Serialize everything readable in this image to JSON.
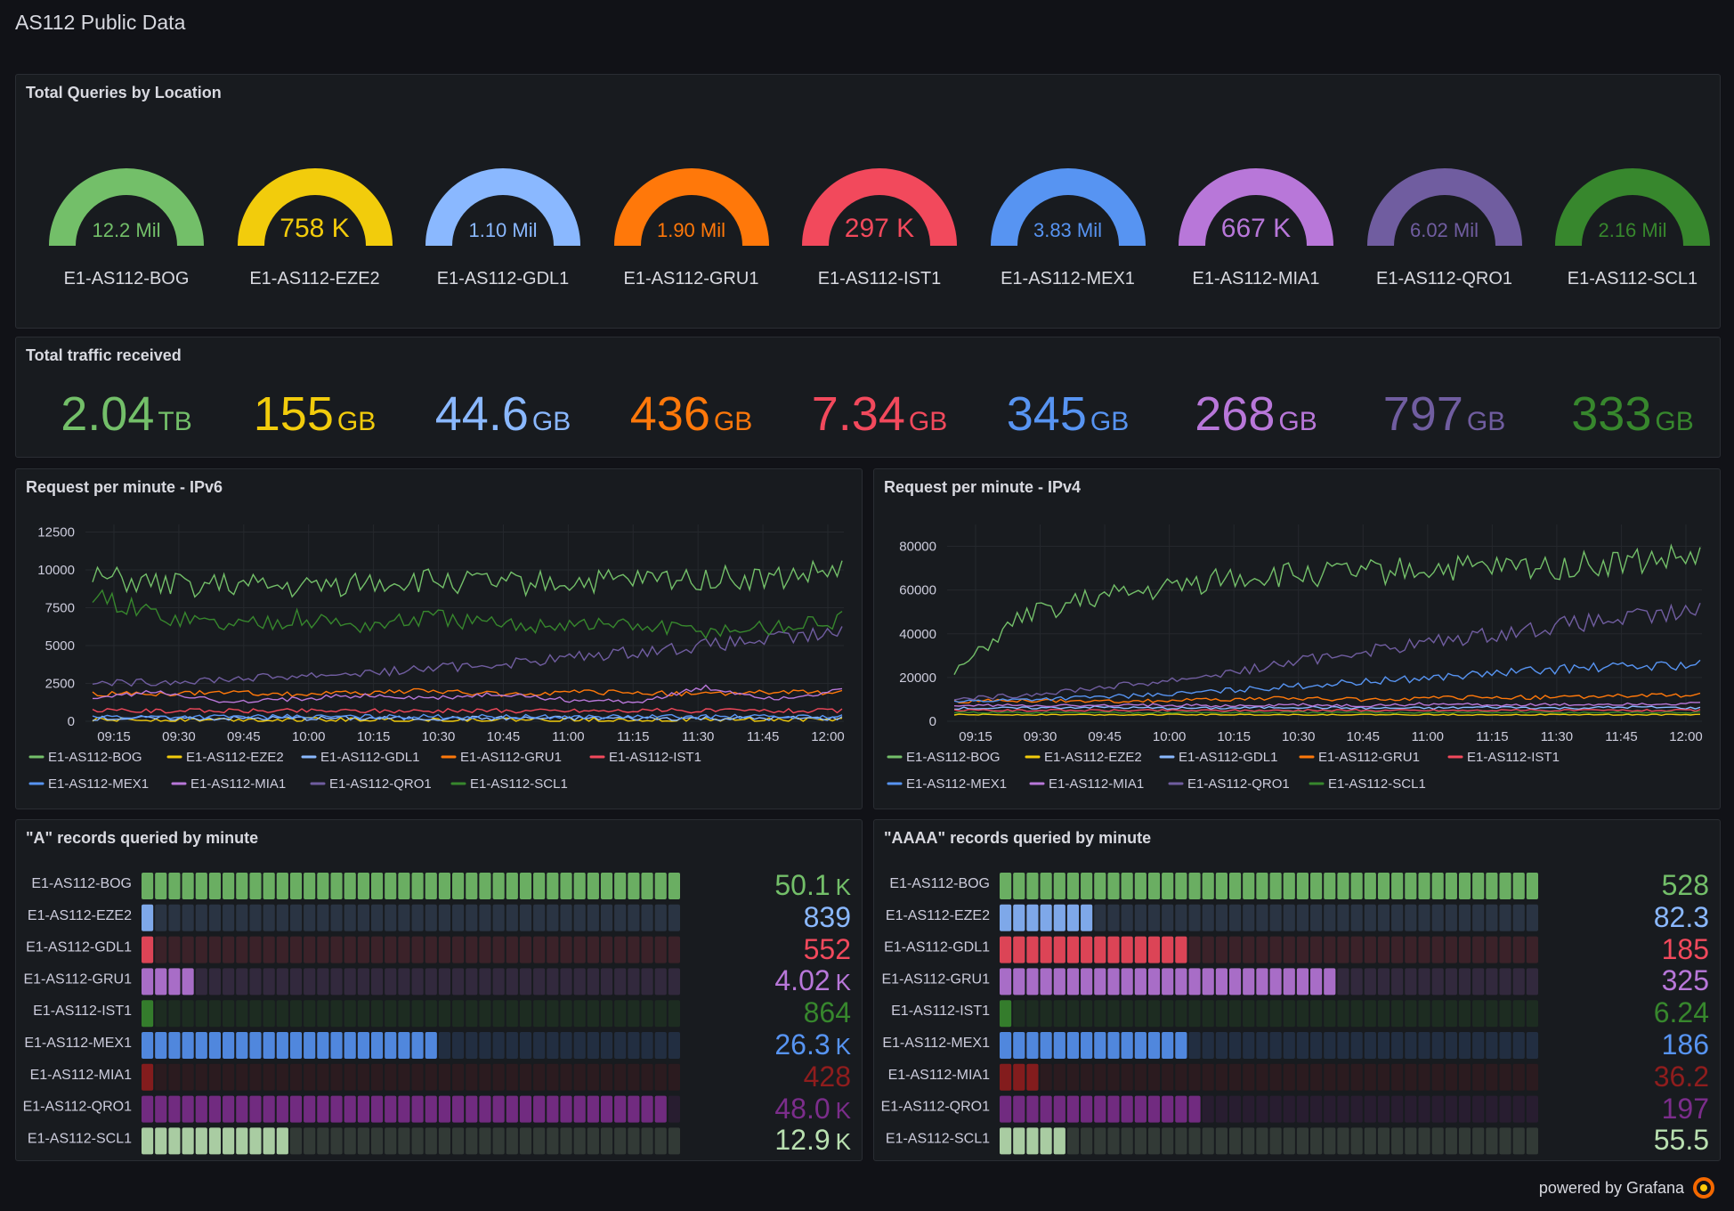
{
  "dashboard": {
    "title": "AS112 Public Data"
  },
  "locations": [
    "E1-AS112-BOG",
    "E1-AS112-EZE2",
    "E1-AS112-GDL1",
    "E1-AS112-GRU1",
    "E1-AS112-IST1",
    "E1-AS112-MEX1",
    "E1-AS112-MIA1",
    "E1-AS112-QRO1",
    "E1-AS112-SCL1"
  ],
  "colors": [
    "#73bf69",
    "#f2cc0c",
    "#8ab8ff",
    "#ff780a",
    "#f2495c",
    "#5794f2",
    "#b877d9",
    "#705da0",
    "#37872d"
  ],
  "queries_panel": {
    "title": "Total Queries by Location",
    "gauges": [
      {
        "value": "12.2 Mil",
        "big": false
      },
      {
        "value": "758 K",
        "big": true
      },
      {
        "value": "1.10 Mil",
        "big": false
      },
      {
        "value": "1.90 Mil",
        "big": false
      },
      {
        "value": "297 K",
        "big": true
      },
      {
        "value": "3.83 Mil",
        "big": false
      },
      {
        "value": "667 K",
        "big": true
      },
      {
        "value": "6.02 Mil",
        "big": false
      },
      {
        "value": "2.16 Mil",
        "big": false
      }
    ]
  },
  "traffic_panel": {
    "title": "Total traffic received",
    "stats": [
      {
        "value": "2.04",
        "unit": "TB"
      },
      {
        "value": "155",
        "unit": "GB"
      },
      {
        "value": "44.6",
        "unit": "GB"
      },
      {
        "value": "436",
        "unit": "GB"
      },
      {
        "value": "7.34",
        "unit": "GB"
      },
      {
        "value": "345",
        "unit": "GB"
      },
      {
        "value": "268",
        "unit": "GB"
      },
      {
        "value": "797",
        "unit": "GB"
      },
      {
        "value": "333",
        "unit": "GB"
      }
    ]
  },
  "ipv6_panel": {
    "title": "Request per minute - IPv6",
    "chart_data": {
      "type": "line",
      "x": [
        "09:15",
        "09:30",
        "09:45",
        "10:00",
        "10:15",
        "10:30",
        "10:45",
        "11:00",
        "11:15",
        "11:30",
        "11:45",
        "12:00"
      ],
      "ylim": [
        0,
        13000
      ],
      "yticks": [
        "0",
        "2500",
        "5000",
        "7500",
        "10000",
        "12500"
      ],
      "series": [
        {
          "name": "E1-AS112-BOG",
          "values": [
            9500,
            9000,
            9000,
            8800,
            9200,
            9300,
            9100,
            9200,
            9300,
            9500,
            9400,
            10000
          ]
        },
        {
          "name": "E1-AS112-EZE2",
          "values": [
            100,
            100,
            100,
            100,
            100,
            100,
            100,
            100,
            100,
            100,
            100,
            100
          ]
        },
        {
          "name": "E1-AS112-GDL1",
          "values": [
            200,
            200,
            200,
            200,
            200,
            200,
            200,
            200,
            200,
            200,
            200,
            200
          ]
        },
        {
          "name": "E1-AS112-GRU1",
          "values": [
            1800,
            1800,
            1900,
            1800,
            1900,
            2000,
            1800,
            1900,
            1900,
            1800,
            1900,
            1900
          ]
        },
        {
          "name": "E1-AS112-IST1",
          "values": [
            700,
            700,
            700,
            700,
            700,
            700,
            700,
            700,
            700,
            700,
            700,
            700
          ]
        },
        {
          "name": "E1-AS112-MEX1",
          "values": [
            300,
            300,
            300,
            300,
            300,
            300,
            300,
            300,
            300,
            300,
            300,
            300
          ]
        },
        {
          "name": "E1-AS112-MIA1",
          "values": [
            1500,
            2000,
            1200,
            1500,
            1700,
            1500,
            1800,
            1400,
            1300,
            2200,
            1500,
            2000
          ]
        },
        {
          "name": "E1-AS112-QRO1",
          "values": [
            2500,
            2600,
            2800,
            3000,
            3200,
            3500,
            3800,
            4200,
            4600,
            5000,
            5400,
            5800
          ]
        },
        {
          "name": "E1-AS112-SCL1",
          "values": [
            8200,
            7000,
            6400,
            6800,
            6300,
            6900,
            6300,
            6500,
            6300,
            6000,
            6200,
            6700
          ]
        }
      ]
    }
  },
  "ipv4_panel": {
    "title": "Request per minute - IPv4",
    "chart_data": {
      "type": "line",
      "x": [
        "09:15",
        "09:30",
        "09:45",
        "10:00",
        "10:15",
        "10:30",
        "10:45",
        "11:00",
        "11:15",
        "11:30",
        "11:45",
        "12:00"
      ],
      "ylim": [
        0,
        90000
      ],
      "yticks": [
        "0",
        "20000",
        "40000",
        "60000",
        "80000"
      ],
      "series": [
        {
          "name": "E1-AS112-BOG",
          "values": [
            22000,
            48000,
            56000,
            60000,
            66000,
            67000,
            68000,
            70000,
            70000,
            71000,
            73000,
            75000
          ]
        },
        {
          "name": "E1-AS112-EZE2",
          "values": [
            3000,
            3000,
            3000,
            3000,
            3000,
            3000,
            3000,
            3000,
            3000,
            3000,
            3000,
            3000
          ]
        },
        {
          "name": "E1-AS112-GDL1",
          "values": [
            6000,
            6000,
            6500,
            6000,
            6000,
            6500,
            6000,
            6000,
            6500,
            6000,
            6500,
            6000
          ]
        },
        {
          "name": "E1-AS112-GRU1",
          "values": [
            9000,
            9500,
            9000,
            9500,
            10000,
            10500,
            10000,
            10500,
            11000,
            11000,
            11500,
            12000
          ]
        },
        {
          "name": "E1-AS112-IST1",
          "values": [
            5000,
            5000,
            5000,
            5000,
            5000,
            5000,
            5000,
            5000,
            5000,
            5000,
            5000,
            5000
          ]
        },
        {
          "name": "E1-AS112-MEX1",
          "values": [
            9000,
            10000,
            11000,
            12000,
            14000,
            16000,
            18000,
            20000,
            22000,
            24000,
            25000,
            26000
          ]
        },
        {
          "name": "E1-AS112-MIA1",
          "values": [
            7000,
            7500,
            7000,
            7500,
            7000,
            7500,
            7000,
            8000,
            7500,
            7500,
            8000,
            8000
          ]
        },
        {
          "name": "E1-AS112-QRO1",
          "values": [
            10000,
            12000,
            15000,
            18000,
            22000,
            27000,
            32000,
            36000,
            40000,
            44000,
            47000,
            50000
          ]
        },
        {
          "name": "E1-AS112-SCL1",
          "values": [
            4000,
            4000,
            4000,
            4000,
            4000,
            4000,
            4000,
            4000,
            4000,
            4000,
            4000,
            4000
          ]
        }
      ]
    }
  },
  "a_panel": {
    "title": "\"A\" records queried by minute",
    "rows": [
      {
        "value": "50.1",
        "unit": "K",
        "fill": 1.0
      },
      {
        "value": "839",
        "unit": "",
        "fill": 0.03
      },
      {
        "value": "552",
        "unit": "",
        "fill": 0.03
      },
      {
        "value": "4.02",
        "unit": "K",
        "fill": 0.1
      },
      {
        "value": "864",
        "unit": "",
        "fill": 0.03
      },
      {
        "value": "26.3",
        "unit": "K",
        "fill": 0.54
      },
      {
        "value": "428",
        "unit": "",
        "fill": 0.03
      },
      {
        "value": "48.0",
        "unit": "K",
        "fill": 0.97
      },
      {
        "value": "12.9",
        "unit": "K",
        "fill": 0.28
      }
    ]
  },
  "aaaa_panel": {
    "title": "\"AAAA\" records queried by minute",
    "rows": [
      {
        "value": "528",
        "unit": "",
        "fill": 1.0
      },
      {
        "value": "82.3",
        "unit": "",
        "fill": 0.17
      },
      {
        "value": "185",
        "unit": "",
        "fill": 0.36
      },
      {
        "value": "325",
        "unit": "",
        "fill": 0.62
      },
      {
        "value": "6.24",
        "unit": "",
        "fill": 0.03
      },
      {
        "value": "186",
        "unit": "",
        "fill": 0.36
      },
      {
        "value": "36.2",
        "unit": "",
        "fill": 0.08
      },
      {
        "value": "197",
        "unit": "",
        "fill": 0.38
      },
      {
        "value": "55.5",
        "unit": "",
        "fill": 0.13
      }
    ]
  },
  "bar_colors": [
    "#73bf69",
    "#8ab8ff",
    "#f2495c",
    "#b877d9",
    "#37872d",
    "#5794f2",
    "#8f1d1d",
    "#7b2d8b",
    "#b9e0b0"
  ],
  "footer": {
    "text": "powered by Grafana",
    "icon": "grafana-logo-icon"
  }
}
